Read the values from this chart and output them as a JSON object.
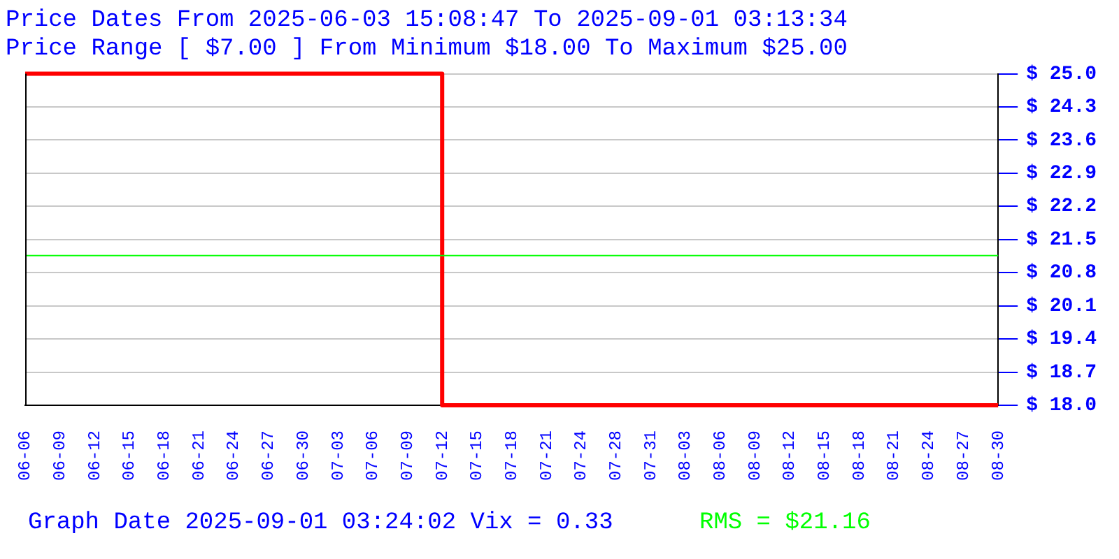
{
  "chart_data": {
    "type": "step",
    "title": "Price Dates From 2025-06-03 15:08:47 To 2025-09-01 03:13:34",
    "subtitle": "Price Range [ $7.00 ] From Minimum $18.00 To Maximum $25.00",
    "annotations": [
      "Graph Date 2025-09-01 03:24:02 Vix = 0.33"
    ],
    "categories": [
      "06-06",
      "06-09",
      "06-12",
      "06-15",
      "06-18",
      "06-21",
      "06-24",
      "06-27",
      "06-30",
      "07-03",
      "07-06",
      "07-09",
      "07-12",
      "07-15",
      "07-18",
      "07-21",
      "07-24",
      "07-28",
      "07-31",
      "08-03",
      "08-06",
      "08-09",
      "08-12",
      "08-15",
      "08-18",
      "08-21",
      "08-24",
      "08-27",
      "08-30"
    ],
    "series": [
      {
        "color": "#ff0000",
        "values": [
          25,
          25,
          25,
          25,
          25,
          25,
          25,
          25,
          25,
          25,
          25,
          25,
          18,
          18,
          18,
          18,
          18,
          18,
          18,
          18,
          18,
          18,
          18,
          18,
          18,
          18,
          18,
          18,
          18
        ]
      }
    ],
    "ylim": [
      18,
      25
    ],
    "yticks": [
      {
        "value": 18,
        "label": "$ 18.0"
      },
      {
        "value": 18.7,
        "label": "$ 18.7"
      },
      {
        "value": 19.4,
        "label": "$ 19.4"
      },
      {
        "value": 20.1,
        "label": "$ 20.1"
      },
      {
        "value": 20.8,
        "label": "$ 20.8"
      },
      {
        "value": 21.5,
        "label": "$ 21.5"
      },
      {
        "value": 22.2,
        "label": "$ 22.2"
      },
      {
        "value": 22.9,
        "label": "$ 22.9"
      },
      {
        "value": 23.6,
        "label": "$ 23.6"
      },
      {
        "value": 24.3,
        "label": "$ 24.3"
      },
      {
        "value": 25,
        "label": "$ 25.0"
      }
    ],
    "ref_lines": [
      {
        "axis": "y",
        "value": 21.16,
        "label": "RMS = $21.16",
        "color": "#00ff00"
      }
    ],
    "grid": "y"
  }
}
